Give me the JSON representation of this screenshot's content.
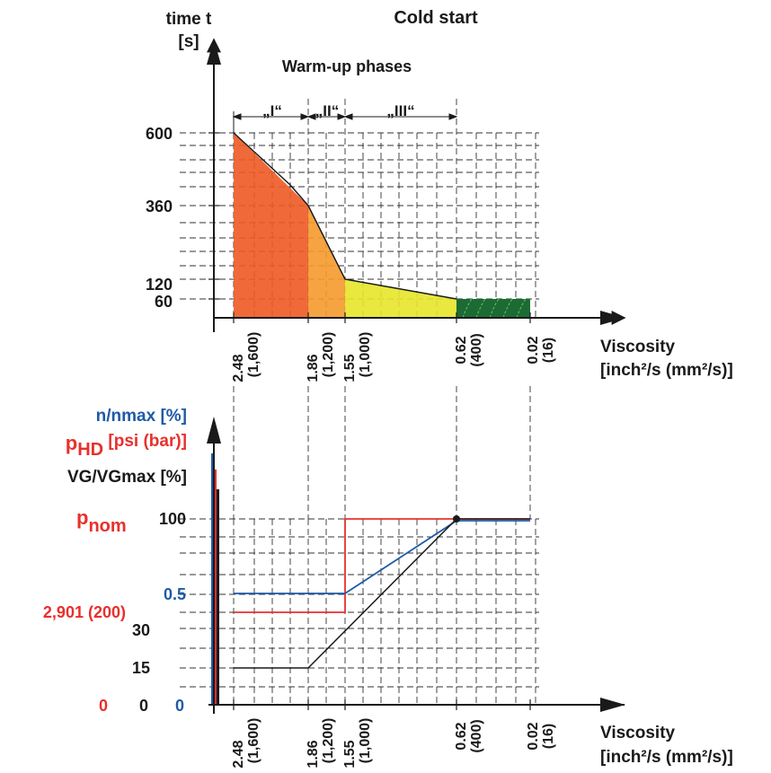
{
  "top_chart": {
    "title": "Cold start",
    "subtitle": "Warm-up phases",
    "y_label_line1": "time t",
    "y_label_line2": "[s]",
    "y_ticks": [
      "600",
      "360",
      "120",
      "60"
    ],
    "phases": [
      "„I“",
      "„II“",
      "„III“"
    ],
    "x_label_line1": "Viscosity",
    "x_label_line2": "[inch²/s (mm²/s)]",
    "x_ticks": [
      {
        "value": "2.48",
        "paren": "(1,600)"
      },
      {
        "value": "1.86",
        "paren": "(1,200)"
      },
      {
        "value": "1.55",
        "paren": "(1,000)"
      },
      {
        "value": "0.62",
        "paren": "(400)"
      },
      {
        "value": "0.02",
        "paren": "(16)"
      }
    ],
    "phase_colors": [
      "#ee5a24",
      "#f59a2e",
      "#e6e62a",
      "#1c6b35"
    ]
  },
  "bottom_chart": {
    "y_label_n": "n/nmax [%]",
    "y_label_p_main": "p",
    "y_label_p_sub": "HD",
    "y_label_p_unit": " [psi (bar)]",
    "y_label_vg": "VG/VGmax [%]",
    "pnom_main": "p",
    "pnom_sub": "nom",
    "tick_100": "100",
    "tick_05": "0.5",
    "tick_2901": "2,901 (200)",
    "tick_30": "30",
    "tick_15": "15",
    "zero_red": "0",
    "zero_black": "0",
    "zero_blue": "0",
    "x_label_line1": "Viscosity",
    "x_label_line2": "[inch²/s (mm²/s)]",
    "x_ticks": [
      {
        "value": "2.48",
        "paren": "(1,600)"
      },
      {
        "value": "1.86",
        "paren": "(1,200)"
      },
      {
        "value": "1.55",
        "paren": "(1,000)"
      },
      {
        "value": "0.62",
        "paren": "(400)"
      },
      {
        "value": "0.02",
        "paren": "(16)"
      }
    ],
    "colors": {
      "n": "#1f5aa6",
      "p": "#e8302c",
      "vg": "#1a1a1a"
    }
  }
}
